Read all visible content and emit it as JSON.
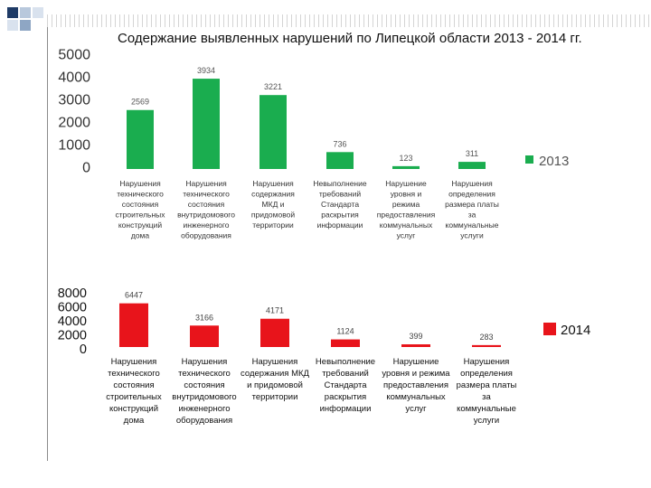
{
  "title": "Содержание выявленных нарушений по Липецкой области 2013 - 2014 гг.",
  "chart_data": [
    {
      "type": "bar",
      "series": [
        {
          "name": "2013",
          "color": "#1aad4f",
          "values": [
            2569,
            3934,
            3221,
            736,
            123,
            311
          ]
        }
      ],
      "categories": [
        "Нарушения технического состояния строительных конструкций дома",
        "Нарушения технического состояния внутридомового инженерного оборудования",
        "Нарушения содержания МКД и придомовой территории",
        "Невыполнение требований Стандарта раскрытия информации",
        "Нарушение уровня и режима предоставления коммунальных услуг",
        "Нарушения определения размера платы за коммунальные услуги"
      ],
      "category_lines": [
        [
          "Нарушения",
          "технического",
          "состояния",
          "строительных",
          "конструкций",
          "дома"
        ],
        [
          "Нарушения",
          "технического",
          "состояния",
          "внутридомового",
          "инженерного",
          "оборудования"
        ],
        [
          "Нарушения",
          "содержания",
          "МКД и",
          "придомовой",
          "территории"
        ],
        [
          "Невыполнение",
          "требований",
          "Стандарта",
          "раскрытия",
          "информации"
        ],
        [
          "Нарушение",
          "уровня и",
          "режима",
          "предоставления",
          "коммунальных",
          "услуг"
        ],
        [
          "Нарушения",
          "определения",
          "размера платы",
          "за",
          "коммунальные",
          "услуги"
        ]
      ],
      "yticks": [
        "5000",
        "4000",
        "3000",
        "2000",
        "1000",
        "0"
      ],
      "ylim": [
        0,
        5000
      ],
      "legend": "right"
    },
    {
      "type": "bar",
      "series": [
        {
          "name": "2014",
          "color": "#e8141b",
          "values": [
            6447,
            3166,
            4171,
            1124,
            399,
            283
          ]
        }
      ],
      "categories": [
        "Нарушения технического состояния строительных конструкций дома",
        "Нарушения технического состояния внутридомового инженерного оборудования",
        "Нарушения содержания МКД и придомовой территории",
        "Невыполнение требований Стандарта раскрытия информации",
        "Нарушение уровня и режима предоставления коммунальных услуг",
        "Нарушения определения размера платы за коммунальные услуги"
      ],
      "category_lines": [
        [
          "Нарушения",
          "технического",
          "состояния",
          "строительных",
          "конструкций",
          "дома"
        ],
        [
          "Нарушения",
          "технического",
          "состояния",
          "внутридомового",
          "инженерного",
          "оборудования"
        ],
        [
          "Нарушения",
          "содержания МКД",
          "и придомовой",
          "территории"
        ],
        [
          "Невыполнение",
          "требований",
          "Стандарта",
          "раскрытия",
          "информации"
        ],
        [
          "Нарушение",
          "уровня и режима",
          "предоставления",
          "коммунальных",
          "услуг"
        ],
        [
          "Нарушения",
          "определения",
          "размера платы",
          "за",
          "коммунальные",
          "услуги"
        ]
      ],
      "yticks": [
        "8000",
        "6000",
        "4000",
        "2000",
        "0"
      ],
      "ylim": [
        0,
        8000
      ],
      "legend": "right"
    }
  ]
}
